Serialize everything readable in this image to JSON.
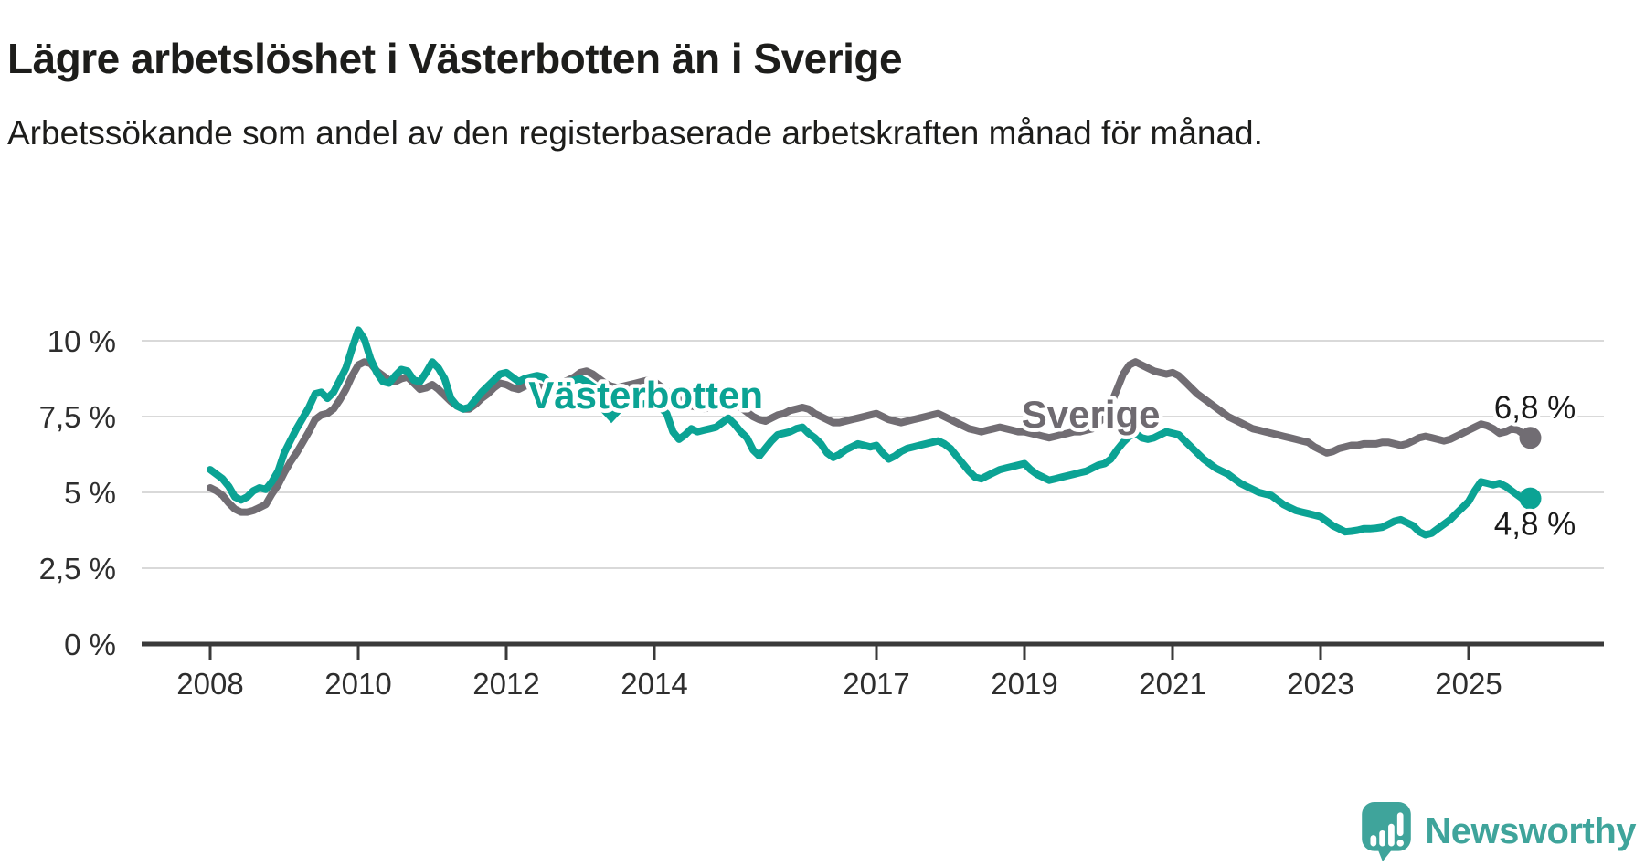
{
  "header": {
    "title": "Lägre arbetslöshet i Västerbotten än i Sverige",
    "subtitle": "Arbetssökande som andel av den registerbaserade arbetskraften månad för månad."
  },
  "branding": {
    "logo_text": "Newsworthy"
  },
  "colors": {
    "vasterbotten": "#0ba394",
    "sverige": "#716d73",
    "grid": "#d9d9d9",
    "axis": "#3a3a3a",
    "tick_text": "#2e2e2e",
    "value_text": "#1a1a1a",
    "logo": "#3fa49b"
  },
  "chart_data": {
    "type": "line",
    "title": "Lägre arbetslöshet i Västerbotten än i Sverige",
    "subtitle": "Arbetssökande som andel av den registerbaserade arbetskraften månad för månad.",
    "unit": "%",
    "grid": true,
    "ylim": [
      0,
      10.5
    ],
    "x_range_years": [
      2008.0,
      2025.92
    ],
    "x_ticks": [
      {
        "year": 2008,
        "label": "2008"
      },
      {
        "year": 2010,
        "label": "2010"
      },
      {
        "year": 2012,
        "label": "2012"
      },
      {
        "year": 2014,
        "label": "2014"
      },
      {
        "year": 2017,
        "label": "2017"
      },
      {
        "year": 2019,
        "label": "2019"
      },
      {
        "year": 2021,
        "label": "2021"
      },
      {
        "year": 2023,
        "label": "2023"
      },
      {
        "year": 2025,
        "label": "2025"
      }
    ],
    "y_ticks": [
      {
        "value": 0,
        "label": "0 %"
      },
      {
        "value": 2.5,
        "label": "2,5 %"
      },
      {
        "value": 5,
        "label": "5 %"
      },
      {
        "value": 7.5,
        "label": "7,5 %"
      },
      {
        "value": 10,
        "label": "10 %"
      }
    ],
    "annotations": [
      {
        "text": "Västerbotten",
        "series": "Västerbotten",
        "color": "#0ba394",
        "x_year": 2012.3,
        "y_pct": 7.77,
        "arrow": {
          "x_year": 2013.42,
          "y_pct": 7.28
        }
      },
      {
        "text": "Sverige",
        "series": "Sverige",
        "color": "#6e6a70",
        "x_year": 2018.96,
        "y_pct": 7.14
      }
    ],
    "series": [
      {
        "name": "Sverige",
        "color": "#716d73",
        "start_year": 2008,
        "step_months": 1,
        "end_label": "6,8 %",
        "end_value": 6.8,
        "end_label_position": "above",
        "values": [
          5.15,
          5.05,
          4.9,
          4.65,
          4.45,
          4.35,
          4.35,
          4.4,
          4.5,
          4.6,
          4.95,
          5.25,
          5.65,
          6.0,
          6.3,
          6.65,
          7.0,
          7.4,
          7.55,
          7.6,
          7.75,
          8.05,
          8.4,
          8.85,
          9.2,
          9.3,
          9.25,
          9.0,
          8.85,
          8.7,
          8.65,
          8.75,
          8.8,
          8.6,
          8.4,
          8.45,
          8.55,
          8.4,
          8.2,
          8.0,
          7.85,
          7.75,
          7.75,
          7.9,
          8.1,
          8.25,
          8.45,
          8.6,
          8.55,
          8.45,
          8.4,
          8.5,
          8.55,
          8.5,
          8.45,
          8.5,
          8.55,
          8.6,
          8.7,
          8.8,
          8.95,
          9.0,
          8.9,
          8.75,
          8.6,
          8.5,
          8.45,
          8.5,
          8.55,
          8.6,
          8.65,
          8.7,
          8.65,
          8.5,
          8.35,
          8.2,
          8.05,
          7.95,
          7.85,
          7.8,
          7.75,
          7.8,
          7.85,
          7.95,
          8.0,
          7.95,
          7.8,
          7.65,
          7.5,
          7.4,
          7.35,
          7.45,
          7.55,
          7.6,
          7.7,
          7.75,
          7.8,
          7.75,
          7.6,
          7.5,
          7.4,
          7.3,
          7.3,
          7.35,
          7.4,
          7.45,
          7.5,
          7.55,
          7.6,
          7.5,
          7.4,
          7.35,
          7.3,
          7.35,
          7.4,
          7.45,
          7.5,
          7.55,
          7.6,
          7.5,
          7.4,
          7.3,
          7.2,
          7.1,
          7.05,
          7.0,
          7.05,
          7.1,
          7.15,
          7.1,
          7.05,
          7.0,
          7.0,
          6.95,
          6.9,
          6.85,
          6.8,
          6.85,
          6.9,
          6.95,
          7.0,
          7.0,
          7.05,
          7.1,
          7.3,
          7.5,
          7.9,
          8.4,
          8.9,
          9.2,
          9.3,
          9.2,
          9.1,
          9.0,
          8.95,
          8.9,
          8.95,
          8.85,
          8.65,
          8.45,
          8.25,
          8.1,
          7.95,
          7.8,
          7.65,
          7.5,
          7.4,
          7.3,
          7.2,
          7.1,
          7.05,
          7.0,
          6.95,
          6.9,
          6.85,
          6.8,
          6.75,
          6.7,
          6.65,
          6.5,
          6.4,
          6.3,
          6.35,
          6.45,
          6.5,
          6.55,
          6.55,
          6.6,
          6.6,
          6.6,
          6.65,
          6.65,
          6.6,
          6.55,
          6.6,
          6.7,
          6.8,
          6.85,
          6.8,
          6.75,
          6.7,
          6.75,
          6.85,
          6.95,
          7.05,
          7.15,
          7.25,
          7.2,
          7.1,
          6.95,
          7.0,
          7.1,
          7.05,
          6.9,
          6.8
        ]
      },
      {
        "name": "Västerbotten",
        "color": "#0ba394",
        "start_year": 2008,
        "step_months": 1,
        "end_label": "4,8 %",
        "end_value": 4.8,
        "end_label_position": "below",
        "values": [
          5.75,
          5.6,
          5.45,
          5.2,
          4.85,
          4.75,
          4.85,
          5.05,
          5.15,
          5.1,
          5.35,
          5.7,
          6.3,
          6.7,
          7.1,
          7.45,
          7.8,
          8.25,
          8.3,
          8.1,
          8.3,
          8.7,
          9.1,
          9.75,
          10.35,
          10.05,
          9.4,
          8.95,
          8.65,
          8.6,
          8.85,
          9.05,
          9.0,
          8.7,
          8.65,
          8.95,
          9.3,
          9.1,
          8.75,
          8.1,
          7.85,
          7.75,
          7.8,
          8.05,
          8.3,
          8.5,
          8.7,
          8.9,
          8.95,
          8.8,
          8.65,
          8.75,
          8.8,
          8.85,
          8.8,
          8.6,
          8.55,
          8.6,
          8.65,
          8.7,
          8.75,
          8.65,
          8.5,
          8.4,
          8.35,
          8.25,
          8.15,
          8.0,
          7.95,
          7.9,
          7.9,
          7.95,
          8.0,
          7.8,
          7.6,
          7.0,
          6.75,
          6.9,
          7.1,
          7.0,
          7.05,
          7.1,
          7.15,
          7.3,
          7.45,
          7.25,
          7.0,
          6.8,
          6.4,
          6.2,
          6.45,
          6.7,
          6.9,
          6.95,
          7.0,
          7.1,
          7.15,
          6.95,
          6.8,
          6.6,
          6.3,
          6.15,
          6.25,
          6.4,
          6.5,
          6.6,
          6.55,
          6.5,
          6.55,
          6.3,
          6.1,
          6.2,
          6.35,
          6.45,
          6.5,
          6.55,
          6.6,
          6.65,
          6.7,
          6.6,
          6.45,
          6.2,
          5.95,
          5.7,
          5.5,
          5.45,
          5.55,
          5.65,
          5.75,
          5.8,
          5.85,
          5.9,
          5.95,
          5.75,
          5.6,
          5.5,
          5.4,
          5.45,
          5.5,
          5.55,
          5.6,
          5.65,
          5.7,
          5.8,
          5.9,
          5.95,
          6.1,
          6.4,
          6.65,
          6.85,
          6.95,
          6.8,
          6.75,
          6.8,
          6.9,
          7.0,
          6.95,
          6.9,
          6.7,
          6.5,
          6.3,
          6.1,
          5.95,
          5.8,
          5.7,
          5.6,
          5.45,
          5.3,
          5.2,
          5.1,
          5.0,
          4.95,
          4.9,
          4.75,
          4.6,
          4.5,
          4.4,
          4.35,
          4.3,
          4.25,
          4.2,
          4.05,
          3.9,
          3.8,
          3.7,
          3.72,
          3.75,
          3.8,
          3.8,
          3.82,
          3.85,
          3.95,
          4.05,
          4.1,
          4.0,
          3.9,
          3.7,
          3.6,
          3.65,
          3.8,
          3.95,
          4.1,
          4.3,
          4.5,
          4.7,
          5.05,
          5.35,
          5.3,
          5.25,
          5.3,
          5.2,
          5.05,
          4.9,
          4.75,
          4.8
        ]
      }
    ]
  }
}
